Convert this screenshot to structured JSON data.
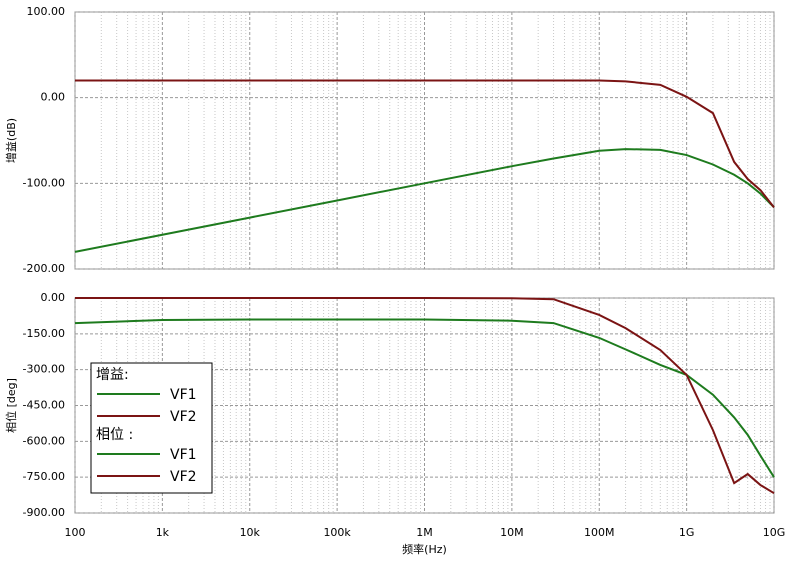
{
  "chart_data": [
    {
      "type": "line",
      "ylabel": "增益(dB)",
      "xscale": "log",
      "grid": true,
      "x": [
        100,
        1000,
        10000,
        100000,
        1000000,
        10000000,
        30000000,
        100000000,
        200000000,
        500000000,
        1000000000,
        2000000000,
        3500000000,
        5000000000,
        7000000000,
        10000000000
      ],
      "xlim": [
        100,
        10000000000
      ],
      "ylim": [
        -200,
        100
      ],
      "yticks": [
        {
          "value": 100,
          "label": "100.00"
        },
        {
          "value": 0,
          "label": "0.00"
        },
        {
          "value": -100,
          "label": "-100.00"
        },
        {
          "value": -200,
          "label": "-200.00"
        }
      ],
      "series": [
        {
          "name": "VF1",
          "color": "#1e7b1e",
          "values": [
            -180,
            -160,
            -140,
            -120,
            -100,
            -80,
            -71,
            -62,
            -60,
            -61,
            -67,
            -78,
            -90,
            -100,
            -112,
            -128
          ]
        },
        {
          "name": "VF2",
          "color": "#7b1414",
          "values": [
            20,
            20,
            20,
            20,
            20,
            20,
            20,
            20,
            19,
            15,
            1,
            -18,
            -75,
            -95,
            -108,
            -128
          ]
        }
      ]
    },
    {
      "type": "line",
      "ylabel": "相位 [deg]",
      "xlabel": "频率(Hz)",
      "xscale": "log",
      "grid": true,
      "x": [
        100,
        1000,
        10000,
        100000,
        1000000,
        10000000,
        30000000,
        100000000,
        200000000,
        500000000,
        1000000000,
        2000000000,
        3500000000,
        5000000000,
        7000000000,
        10000000000
      ],
      "xlim": [
        100,
        10000000000
      ],
      "xticks": [
        100,
        {
          "value": 1000,
          "label": "1k"
        },
        {
          "value": 10000,
          "label": "10k"
        },
        {
          "value": 100000,
          "label": "100k"
        },
        {
          "value": 1000000,
          "label": "1M"
        },
        {
          "value": 10000000,
          "label": "10M"
        },
        {
          "value": 100000000,
          "label": "100M"
        },
        {
          "value": 1000000000,
          "label": "1G"
        },
        {
          "value": 10000000000,
          "label": "10G"
        }
      ],
      "ylim": [
        -900,
        0
      ],
      "yticks": [
        {
          "value": 0,
          "label": "0.00"
        },
        {
          "value": -150,
          "label": "-150.00"
        },
        {
          "value": -300,
          "label": "-300.00"
        },
        {
          "value": -450,
          "label": "-450.00"
        },
        {
          "value": -600,
          "label": "-600.00"
        },
        {
          "value": -750,
          "label": "-750.00"
        },
        {
          "value": -900,
          "label": "-900.00"
        }
      ],
      "series": [
        {
          "name": "VF1",
          "color": "#1e7b1e",
          "values": [
            -105,
            -92,
            -90,
            -90,
            -90,
            -95,
            -105,
            -167,
            -215,
            -280,
            -322,
            -405,
            -500,
            -573,
            -660,
            -750
          ]
        },
        {
          "name": "VF2",
          "color": "#7b1414",
          "values": [
            0,
            0,
            0,
            0,
            0,
            -1,
            -5,
            -71,
            -126,
            -218,
            -322,
            -553,
            -775,
            -737,
            -783,
            -817
          ]
        }
      ]
    }
  ],
  "legend": {
    "titles": [
      "增益:",
      "相位 :"
    ],
    "corner": "lower-left"
  }
}
